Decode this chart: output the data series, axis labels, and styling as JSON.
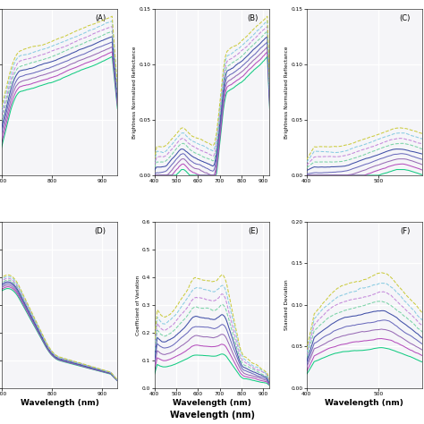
{
  "xlabel": "Wavelength (nm)",
  "panel_labels": [
    "(A)",
    "(B)",
    "(C)",
    "(D)",
    "(E)",
    "(F)"
  ],
  "colors9": [
    "#00c878",
    "#b040b8",
    "#b060c0",
    "#7070c8",
    "#4040a0",
    "#50c8a0",
    "#c080d0",
    "#8080d8",
    "#c8c830"
  ],
  "styles9": [
    "solid",
    "solid",
    "solid",
    "solid",
    "solid",
    "dashed",
    "dashed",
    "dashed",
    "dashed"
  ],
  "background": "#f5f5f8",
  "grid_color": "#ffffff",
  "line_width": 0.75
}
